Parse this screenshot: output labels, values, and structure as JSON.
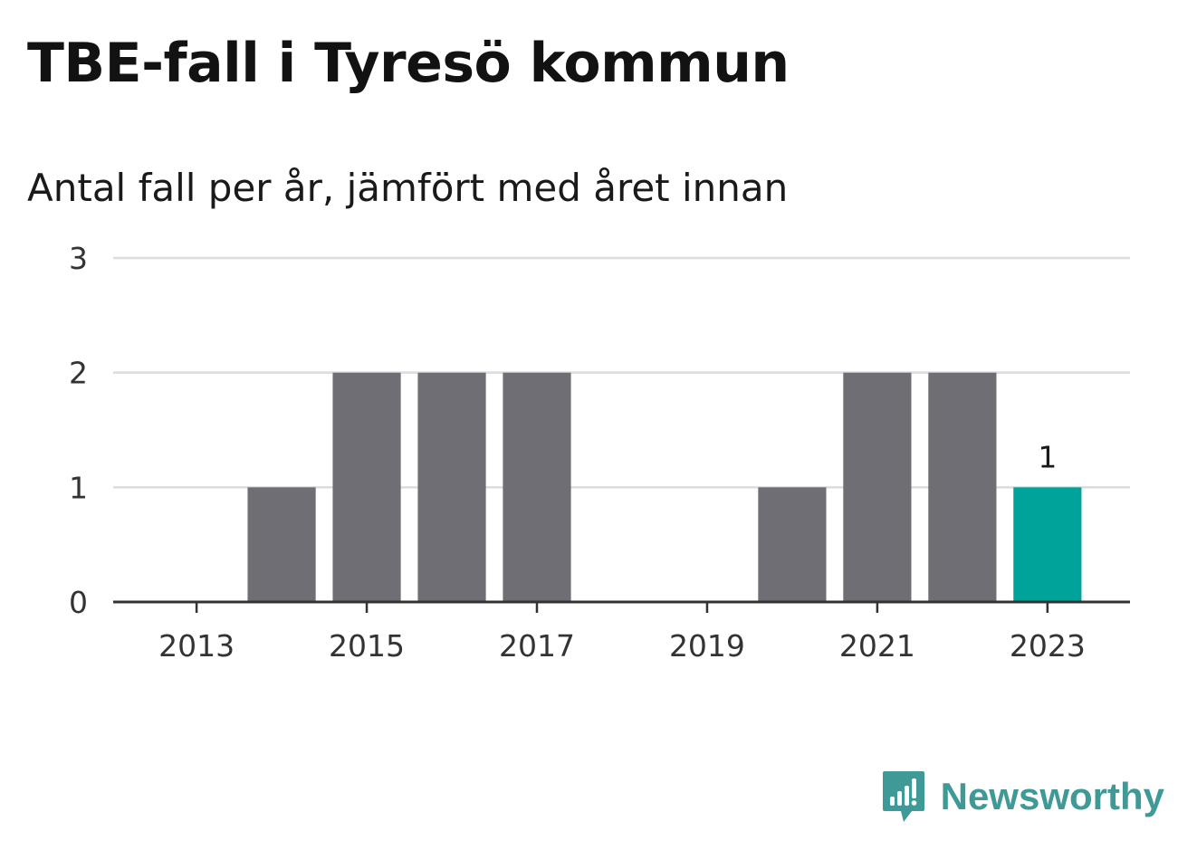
{
  "chart_data": {
    "type": "bar",
    "title": "TBE-fall i Tyresö kommun",
    "subtitle": "Antal fall per år, jämfört med året innan",
    "categories": [
      "2013",
      "2014",
      "2015",
      "2016",
      "2017",
      "2018",
      "2019",
      "2020",
      "2021",
      "2022",
      "2023"
    ],
    "x_tick_labels": [
      "2013",
      "2015",
      "2017",
      "2019",
      "2021",
      "2023"
    ],
    "values": [
      0,
      1,
      2,
      2,
      2,
      0,
      0,
      1,
      2,
      2,
      1
    ],
    "highlight_category": "2023",
    "highlight_value_label": "1",
    "ylim": [
      0,
      3
    ],
    "y_ticks": [
      0,
      1,
      2,
      3
    ],
    "grid": true,
    "colors": {
      "bar": "#6f6e74",
      "highlight": "#00a39a",
      "grid": "#dcdcdc",
      "axis": "#333333"
    }
  },
  "branding": {
    "logo_text": "Newsworthy",
    "logo_icon": "newsworthy-chart-bubble-icon",
    "logo_color": "#3f9a97"
  }
}
